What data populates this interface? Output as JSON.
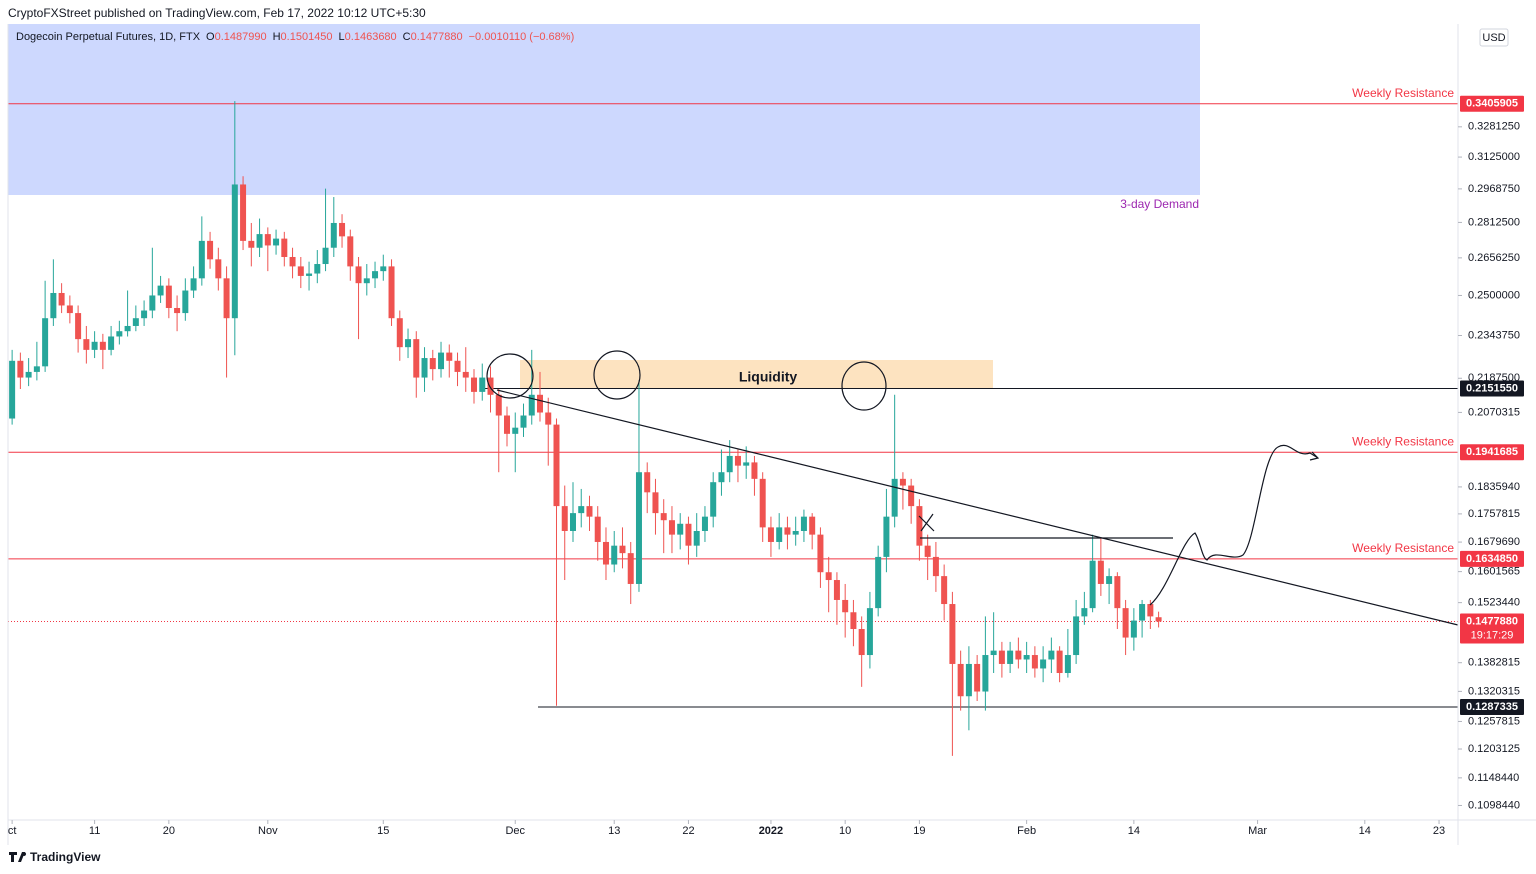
{
  "header": {
    "byline": "CryptoFXStreet published on TradingView.com, Feb 17, 2022 10:12 UTC+5:30",
    "footer": "TradingView",
    "currency": "USD"
  },
  "chart_data": {
    "type": "candlestick",
    "title": "Dogecoin Perpetual Futures, 1D, FTX",
    "ohlc_text": [
      "O",
      "0.1487990",
      "H",
      "0.1501450",
      "L",
      "0.1463680",
      "C",
      "0.1477880"
    ],
    "change_text": "−0.0010110 (−0.68%)",
    "log_scale": true,
    "up_color": "#26a69a",
    "down_color": "#ef5350",
    "ylim": [
      0.1073,
      0.3873
    ],
    "xlim": [
      -0.5,
      175.3
    ],
    "yticks": [
      {
        "value": 0.328125,
        "label": "0.3281250"
      },
      {
        "value": 0.3125,
        "label": "0.3125000"
      },
      {
        "value": 0.296875,
        "label": "0.2968750"
      },
      {
        "value": 0.28125,
        "label": "0.2812500"
      },
      {
        "value": 0.265625,
        "label": "0.2656250"
      },
      {
        "value": 0.25,
        "label": "0.2500000"
      },
      {
        "value": 0.234375,
        "label": "0.2343750"
      },
      {
        "value": 0.21875,
        "label": "0.2187500"
      },
      {
        "value": 0.2070315,
        "label": "0.2070315"
      },
      {
        "value": 0.183594,
        "label": "0.1835940"
      },
      {
        "value": 0.1757815,
        "label": "0.1757815"
      },
      {
        "value": 0.167969,
        "label": "0.1679690"
      },
      {
        "value": 0.1601565,
        "label": "0.1601565"
      },
      {
        "value": 0.152344,
        "label": "0.1523440"
      },
      {
        "value": 0.1382815,
        "label": "0.1382815"
      },
      {
        "value": 0.1320315,
        "label": "0.1320315"
      },
      {
        "value": 0.1257815,
        "label": "0.1257815"
      },
      {
        "value": 0.1203125,
        "label": "0.1203125"
      },
      {
        "value": 0.114844,
        "label": "0.1148440"
      },
      {
        "value": 0.109844,
        "label": "0.1098440"
      }
    ],
    "xticks": [
      {
        "value": 0,
        "label": "ct"
      },
      {
        "value": 10,
        "label": "11"
      },
      {
        "value": 19,
        "label": "20"
      },
      {
        "value": 31,
        "label": "Nov"
      },
      {
        "value": 45,
        "label": "15"
      },
      {
        "value": 61,
        "label": "Dec"
      },
      {
        "value": 73,
        "label": "13"
      },
      {
        "value": 82,
        "label": "22"
      },
      {
        "value": 92,
        "label": "2022"
      },
      {
        "value": 101,
        "label": "10"
      },
      {
        "value": 110,
        "label": "19"
      },
      {
        "value": 123,
        "label": "Feb"
      },
      {
        "value": 136,
        "label": "14"
      },
      {
        "value": 151,
        "label": "Mar"
      },
      {
        "value": 164,
        "label": "14"
      },
      {
        "value": 173,
        "label": "23"
      }
    ],
    "levels": [
      {
        "value": 0.3405905,
        "label": "0.3405905",
        "note": "Weekly Resistance",
        "color": "#f23645"
      },
      {
        "value": 0.215155,
        "label": "0.2151550",
        "color": "#131722"
      },
      {
        "value": 0.1941685,
        "label": "0.1941685",
        "note": "Weekly Resistance",
        "color": "#f23645"
      },
      {
        "value": 0.163485,
        "label": "0.1634850",
        "note": "Weekly Resistance",
        "color": "#f23645"
      },
      {
        "value": 0.147788,
        "label": "0.1477880",
        "countdown": "19:17:29",
        "color": "#f23645"
      },
      {
        "value": 0.1287335,
        "label": "0.1287335",
        "color": "#131722"
      }
    ],
    "annotations": [
      "Liquidity",
      "3-day Demand"
    ],
    "categories": [
      null,
      null,
      null,
      null,
      null,
      null,
      null,
      null,
      null,
      null,
      null,
      null,
      null,
      null,
      null,
      null,
      null,
      null,
      null,
      null,
      null,
      null,
      null,
      null,
      null,
      null,
      null,
      null,
      null,
      null,
      null,
      null,
      null,
      null,
      null,
      null,
      null,
      null,
      null,
      null,
      null,
      null,
      null,
      null,
      null,
      null,
      null,
      null,
      null,
      null,
      null,
      null,
      null,
      null,
      null,
      null,
      null,
      null,
      null,
      null,
      null,
      null,
      null,
      null,
      null,
      null,
      null,
      null,
      null,
      null,
      null,
      null,
      null,
      null,
      null,
      null,
      null,
      null,
      null,
      null,
      null,
      null,
      null,
      null,
      null,
      null,
      null,
      null,
      null,
      null,
      null,
      null,
      null,
      null,
      null,
      null,
      null,
      null,
      null,
      null,
      null,
      null,
      null,
      null,
      null,
      null,
      null,
      null,
      null,
      null,
      null,
      null,
      null,
      null,
      null,
      null,
      null,
      null,
      null,
      null,
      null,
      null,
      null,
      null,
      null,
      null,
      null,
      null,
      null,
      null,
      null,
      null,
      null,
      null,
      null,
      null,
      null,
      null,
      null,
      null
    ],
    "open": [
      0.205,
      0.225,
      0.219,
      0.221,
      0.223,
      0.241,
      0.251,
      0.246,
      0.243,
      0.233,
      0.229,
      0.232,
      0.229,
      0.234,
      0.236,
      0.238,
      0.241,
      0.244,
      0.25,
      0.254,
      0.245,
      0.243,
      0.252,
      0.257,
      0.273,
      0.265,
      0.257,
      0.241,
      0.299,
      0.273,
      0.27,
      0.276,
      0.271,
      0.274,
      0.266,
      0.262,
      0.258,
      0.259,
      0.263,
      0.27,
      0.281,
      0.275,
      0.262,
      0.255,
      0.257,
      0.26,
      0.262,
      0.241,
      0.23,
      0.233,
      0.219,
      0.226,
      0.222,
      0.228,
      0.225,
      0.221,
      0.219,
      0.214,
      0.219,
      0.213,
      0.206,
      0.2,
      0.202,
      0.206,
      0.213,
      0.207,
      0.203,
      0.178,
      0.171,
      0.176,
      0.178,
      0.175,
      0.168,
      0.162,
      0.167,
      0.165,
      0.157,
      0.188,
      0.182,
      0.176,
      0.174,
      0.17,
      0.173,
      0.167,
      0.171,
      0.175,
      0.185,
      0.188,
      0.193,
      0.19,
      0.191,
      0.186,
      0.172,
      0.168,
      0.172,
      0.17,
      0.171,
      0.175,
      0.17,
      0.16,
      0.158,
      0.153,
      0.15,
      0.146,
      0.14,
      0.151,
      0.164,
      0.175,
      0.186,
      0.184,
      0.178,
      0.167,
      0.164,
      0.159,
      0.152,
      0.138,
      0.131,
      0.138,
      0.132,
      0.14,
      0.141,
      0.138,
      0.141,
      0.139,
      0.14,
      0.137,
      0.139,
      0.141,
      0.136,
      0.14,
      0.149,
      0.151,
      0.163,
      0.157,
      0.159,
      0.151,
      0.144,
      0.148,
      0.152,
      0.148799
    ],
    "high": [
      0.229,
      0.228,
      0.226,
      0.232,
      0.256,
      0.265,
      0.255,
      0.25,
      0.246,
      0.238,
      0.236,
      0.235,
      0.238,
      0.24,
      0.252,
      0.246,
      0.248,
      0.27,
      0.258,
      0.257,
      0.25,
      0.257,
      0.262,
      0.284,
      0.277,
      0.27,
      0.262,
      0.342,
      0.303,
      0.281,
      0.283,
      0.279,
      0.278,
      0.277,
      0.27,
      0.266,
      0.264,
      0.269,
      0.297,
      0.293,
      0.285,
      0.278,
      0.266,
      0.263,
      0.264,
      0.267,
      0.265,
      0.244,
      0.237,
      0.236,
      0.23,
      0.229,
      0.232,
      0.231,
      0.228,
      0.23,
      0.222,
      0.224,
      0.223,
      0.215,
      0.209,
      0.207,
      0.21,
      0.229,
      0.221,
      0.212,
      0.205,
      0.184,
      0.185,
      0.183,
      0.181,
      0.178,
      0.172,
      0.171,
      0.172,
      0.168,
      0.218,
      0.191,
      0.186,
      0.18,
      0.178,
      0.176,
      0.175,
      0.176,
      0.178,
      0.188,
      0.195,
      0.198,
      0.195,
      0.196,
      0.193,
      0.188,
      0.175,
      0.176,
      0.175,
      0.175,
      0.177,
      0.176,
      0.172,
      0.164,
      0.16,
      0.157,
      0.153,
      0.149,
      0.155,
      0.167,
      0.183,
      0.213,
      0.188,
      0.186,
      0.18,
      0.17,
      0.168,
      0.162,
      0.155,
      0.141,
      0.142,
      0.14,
      0.149,
      0.15,
      0.143,
      0.143,
      0.144,
      0.143,
      0.142,
      0.142,
      0.144,
      0.142,
      0.146,
      0.153,
      0.155,
      0.17,
      0.169,
      0.161,
      0.16,
      0.153,
      0.151,
      0.153,
      0.153,
      0.150145
    ],
    "low": [
      0.203,
      0.215,
      0.216,
      0.218,
      0.221,
      0.238,
      0.243,
      0.239,
      0.228,
      0.224,
      0.226,
      0.222,
      0.227,
      0.231,
      0.234,
      0.236,
      0.238,
      0.241,
      0.247,
      0.241,
      0.236,
      0.24,
      0.249,
      0.254,
      0.261,
      0.252,
      0.219,
      0.227,
      0.269,
      0.262,
      0.266,
      0.26,
      0.267,
      0.262,
      0.257,
      0.253,
      0.252,
      0.255,
      0.26,
      0.266,
      0.27,
      0.256,
      0.233,
      0.25,
      0.253,
      0.256,
      0.238,
      0.225,
      0.226,
      0.212,
      0.214,
      0.218,
      0.219,
      0.219,
      0.216,
      0.214,
      0.21,
      0.211,
      0.207,
      0.188,
      0.196,
      0.188,
      0.199,
      0.203,
      0.204,
      0.19,
      0.129,
      0.158,
      0.168,
      0.172,
      0.171,
      0.163,
      0.158,
      0.16,
      0.161,
      0.152,
      0.155,
      0.176,
      0.17,
      0.165,
      0.165,
      0.166,
      0.162,
      0.164,
      0.168,
      0.172,
      0.181,
      0.185,
      0.185,
      0.186,
      0.181,
      0.168,
      0.164,
      0.166,
      0.166,
      0.167,
      0.168,
      0.166,
      0.156,
      0.15,
      0.147,
      0.144,
      0.142,
      0.133,
      0.137,
      0.149,
      0.16,
      0.172,
      0.177,
      0.173,
      0.163,
      0.158,
      0.155,
      0.148,
      0.119,
      0.128,
      0.124,
      0.13,
      0.128,
      0.136,
      0.135,
      0.136,
      0.137,
      0.136,
      0.135,
      0.134,
      0.136,
      0.134,
      0.135,
      0.138,
      0.147,
      0.15,
      0.154,
      0.152,
      0.146,
      0.14,
      0.141,
      0.144,
      0.146,
      0.146368
    ],
    "close": [
      0.225,
      0.219,
      0.221,
      0.223,
      0.241,
      0.251,
      0.246,
      0.243,
      0.233,
      0.229,
      0.232,
      0.229,
      0.234,
      0.236,
      0.238,
      0.241,
      0.244,
      0.25,
      0.254,
      0.245,
      0.243,
      0.252,
      0.257,
      0.273,
      0.265,
      0.257,
      0.241,
      0.299,
      0.273,
      0.27,
      0.276,
      0.271,
      0.274,
      0.266,
      0.262,
      0.258,
      0.259,
      0.263,
      0.27,
      0.281,
      0.275,
      0.262,
      0.255,
      0.257,
      0.26,
      0.262,
      0.241,
      0.23,
      0.233,
      0.219,
      0.226,
      0.222,
      0.228,
      0.225,
      0.221,
      0.219,
      0.214,
      0.219,
      0.213,
      0.206,
      0.2,
      0.202,
      0.206,
      0.213,
      0.207,
      0.203,
      0.178,
      0.171,
      0.176,
      0.178,
      0.175,
      0.168,
      0.162,
      0.167,
      0.165,
      0.157,
      0.188,
      0.182,
      0.176,
      0.174,
      0.17,
      0.173,
      0.167,
      0.171,
      0.175,
      0.185,
      0.188,
      0.193,
      0.19,
      0.191,
      0.186,
      0.172,
      0.168,
      0.172,
      0.17,
      0.171,
      0.175,
      0.17,
      0.16,
      0.158,
      0.153,
      0.15,
      0.146,
      0.14,
      0.151,
      0.164,
      0.175,
      0.186,
      0.184,
      0.178,
      0.167,
      0.164,
      0.159,
      0.152,
      0.138,
      0.131,
      0.138,
      0.132,
      0.14,
      0.141,
      0.138,
      0.141,
      0.139,
      0.14,
      0.137,
      0.139,
      0.141,
      0.136,
      0.14,
      0.149,
      0.151,
      0.163,
      0.157,
      0.159,
      0.151,
      0.144,
      0.148,
      0.152,
      0.149,
      0.147788
    ]
  }
}
